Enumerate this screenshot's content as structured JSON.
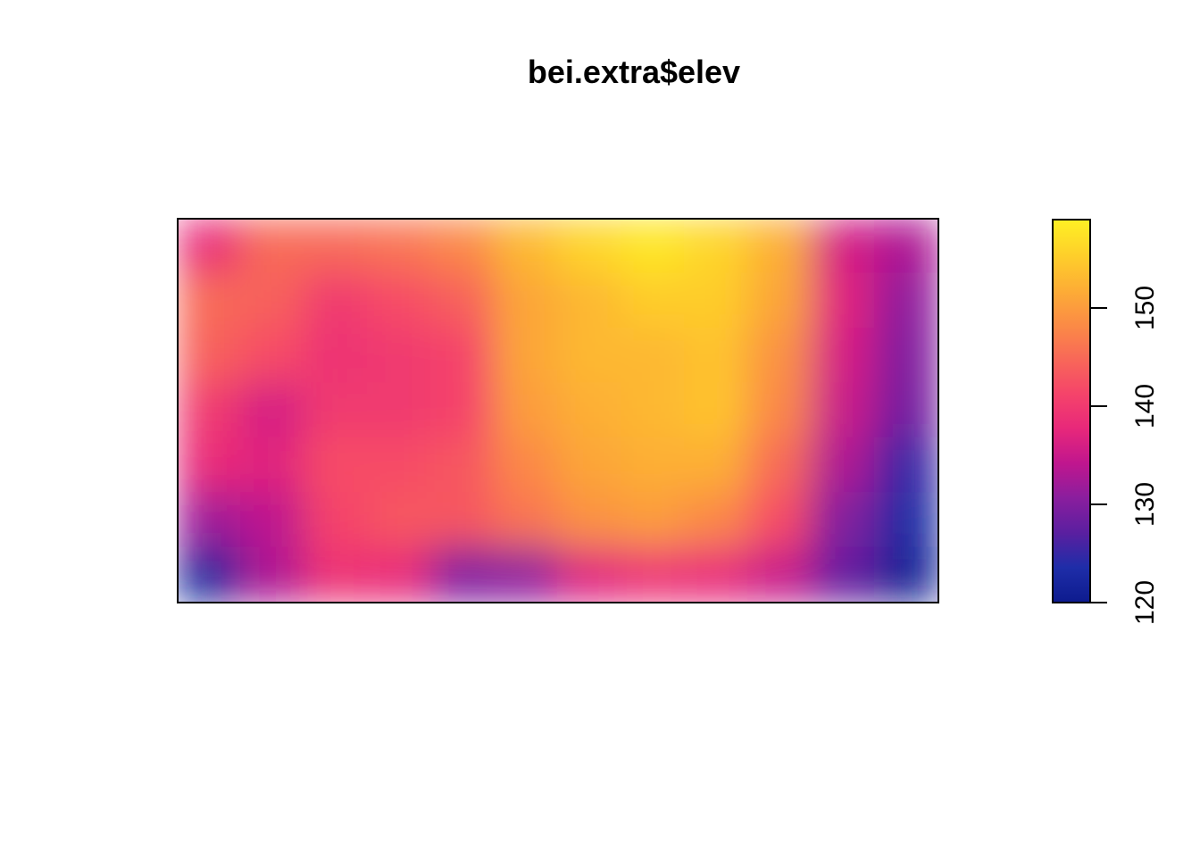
{
  "chart_data": {
    "type": "heatmap",
    "title": "bei.extra$elev",
    "xlabel": "",
    "ylabel": "",
    "colorbar": {
      "range": [
        120,
        159
      ],
      "ticks": [
        "120",
        "130",
        "140",
        "150"
      ],
      "tick_values": [
        120,
        130,
        140,
        150
      ],
      "palette": [
        "#0D1B8E",
        "#1E2DA8",
        "#5A1FA0",
        "#8A1E9E",
        "#C0168E",
        "#E8287A",
        "#F5446A",
        "#F86858",
        "#FB8C45",
        "#FDAE35",
        "#FED02A",
        "#FEF024"
      ]
    },
    "grid_cols": 12,
    "grid_rows": 7,
    "values": [
      [
        138,
        145,
        145,
        146,
        148,
        153,
        156,
        158,
        156,
        152,
        136,
        133
      ],
      [
        145,
        144,
        140,
        142,
        144,
        151,
        153,
        155,
        155,
        151,
        137,
        131
      ],
      [
        144,
        142,
        139,
        140,
        141,
        151,
        153,
        153,
        154,
        149,
        136,
        130
      ],
      [
        140,
        136,
        140,
        140,
        141,
        150,
        152,
        153,
        154,
        148,
        135,
        129
      ],
      [
        138,
        137,
        142,
        142,
        143,
        148,
        151,
        152,
        152,
        145,
        133,
        125
      ],
      [
        132,
        134,
        141,
        143,
        143,
        146,
        149,
        150,
        148,
        142,
        130,
        123
      ],
      [
        122,
        133,
        139,
        138,
        130,
        131,
        137,
        139,
        138,
        135,
        128,
        121
      ]
    ]
  }
}
